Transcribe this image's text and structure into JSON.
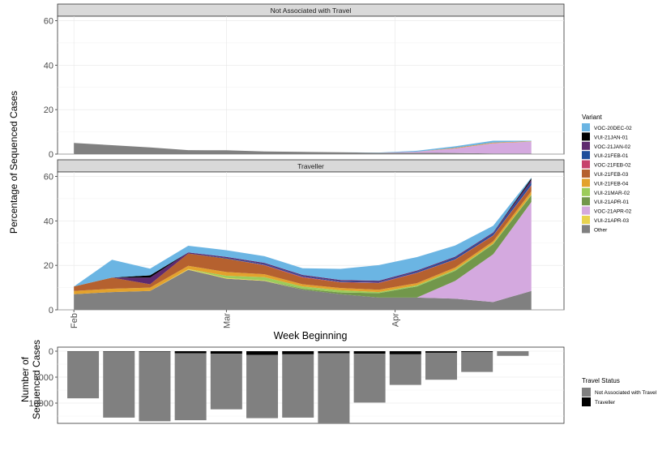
{
  "labels": {
    "ylabel_top": "Percentage of Sequenced Cases",
    "xlabel": "Week Beginning",
    "ylabel_bottom_line1": "Number of",
    "ylabel_bottom_line2": "Sequenced Cases",
    "legend1_title": "Variant",
    "legend2_title": "Travel Status"
  },
  "chart_data": [
    {
      "type": "area",
      "facet": "Not Associated with Travel",
      "ylim": [
        0,
        62
      ],
      "yticks": [
        0,
        20,
        40,
        60
      ],
      "x": [
        "2021-02-01",
        "2021-02-08",
        "2021-02-15",
        "2021-02-22",
        "2021-03-01",
        "2021-03-08",
        "2021-03-15",
        "2021-03-22",
        "2021-03-29",
        "2021-04-05",
        "2021-04-12",
        "2021-04-19",
        "2021-04-26"
      ],
      "xticks": [
        {
          "label": "Feb",
          "date": "2021-02-01"
        },
        {
          "label": "Mar",
          "date": "2021-03-01"
        },
        {
          "label": "Apr",
          "date": "2021-04-01"
        }
      ],
      "series": [
        {
          "name": "Other",
          "color": "#808080",
          "values": [
            5,
            4,
            3,
            1.8,
            1.7,
            1.2,
            1,
            0.8,
            0.6,
            0.6,
            0.5,
            0.3,
            0.3
          ]
        },
        {
          "name": "VUI-21APR-03",
          "color": "#E8D34F",
          "values": [
            0,
            0,
            0,
            0,
            0,
            0,
            0,
            0,
            0,
            0,
            0,
            0,
            0
          ]
        },
        {
          "name": "VOC-21APR-02",
          "color": "#D4A9DF",
          "values": [
            0,
            0,
            0,
            0,
            0,
            0,
            0,
            0,
            0,
            0.5,
            2,
            4.6,
            5.3
          ]
        },
        {
          "name": "VUI-21APR-01",
          "color": "#72974B",
          "values": [
            0,
            0,
            0,
            0,
            0,
            0,
            0,
            0,
            0,
            0,
            0,
            0,
            0
          ]
        },
        {
          "name": "VUI-21MAR-02",
          "color": "#9CCC5A",
          "values": [
            0,
            0,
            0,
            0,
            0,
            0,
            0,
            0,
            0,
            0,
            0,
            0,
            0
          ]
        },
        {
          "name": "VUI-21FEB-04",
          "color": "#E3A22D",
          "values": [
            0,
            0,
            0,
            0,
            0,
            0,
            0,
            0,
            0,
            0,
            0.2,
            0.2,
            0.2
          ]
        },
        {
          "name": "VUI-21FEB-03",
          "color": "#B5612F",
          "values": [
            0,
            0,
            0,
            0,
            0,
            0,
            0,
            0,
            0,
            0,
            0.1,
            0.1,
            0
          ]
        },
        {
          "name": "VOC-21FEB-02",
          "color": "#C7426C",
          "values": [
            0,
            0,
            0,
            0,
            0,
            0,
            0,
            0,
            0,
            0,
            0,
            0,
            0
          ]
        },
        {
          "name": "VUI-21FEB-01",
          "color": "#1F4E9B",
          "values": [
            0,
            0,
            0,
            0,
            0,
            0,
            0,
            0,
            0,
            0,
            0,
            0,
            0
          ]
        },
        {
          "name": "VOC-21JAN-02",
          "color": "#5E2A6F",
          "values": [
            0,
            0,
            0,
            0,
            0,
            0,
            0,
            0,
            0,
            0,
            0,
            0,
            0
          ]
        },
        {
          "name": "VUI-21JAN-01",
          "color": "#000000",
          "values": [
            0,
            0,
            0,
            0,
            0,
            0,
            0,
            0,
            0,
            0,
            0,
            0,
            0
          ]
        },
        {
          "name": "VOC-20DEC-02",
          "color": "#6BB5E3",
          "values": [
            0,
            0,
            0,
            0,
            0,
            0,
            0,
            0,
            0.1,
            0.4,
            0.7,
            0.8,
            0.2
          ]
        }
      ]
    },
    {
      "type": "area",
      "facet": "Traveller",
      "ylim": [
        0,
        62
      ],
      "yticks": [
        0,
        20,
        40,
        60
      ],
      "x": [
        "2021-02-01",
        "2021-02-08",
        "2021-02-15",
        "2021-02-22",
        "2021-03-01",
        "2021-03-08",
        "2021-03-15",
        "2021-03-22",
        "2021-03-29",
        "2021-04-05",
        "2021-04-12",
        "2021-04-19",
        "2021-04-26"
      ],
      "xticks": [
        {
          "label": "Feb",
          "date": "2021-02-01"
        },
        {
          "label": "Mar",
          "date": "2021-03-01"
        },
        {
          "label": "Apr",
          "date": "2021-04-01"
        }
      ],
      "series": [
        {
          "name": "Other",
          "color": "#808080",
          "values": [
            7,
            8,
            8.5,
            18,
            14,
            13,
            9,
            7,
            5.5,
            5.5,
            5,
            3.5,
            8.5
          ]
        },
        {
          "name": "VUI-21APR-03",
          "color": "#E8D34F",
          "values": [
            0,
            0,
            0,
            0.3,
            0.3,
            0.2,
            0,
            0,
            0,
            0,
            0,
            0,
            0
          ]
        },
        {
          "name": "VOC-21APR-02",
          "color": "#D4A9DF",
          "values": [
            0,
            0,
            0,
            0,
            0,
            0,
            0,
            0,
            0,
            0,
            8,
            21.5,
            40
          ]
        },
        {
          "name": "VUI-21APR-01",
          "color": "#72974B",
          "values": [
            0,
            0,
            0,
            0,
            0,
            0,
            0.5,
            0.8,
            2,
            5,
            4.5,
            4.5,
            3
          ]
        },
        {
          "name": "VUI-21MAR-02",
          "color": "#9CCC5A",
          "values": [
            0,
            0,
            0,
            0,
            1,
            1.5,
            1,
            1,
            0.5,
            0.5,
            0.5,
            0.3,
            0.3
          ]
        },
        {
          "name": "VUI-21FEB-04",
          "color": "#E3A22D",
          "values": [
            1.5,
            1.5,
            1.5,
            1.5,
            1.7,
            1.3,
            1,
            1,
            1,
            1,
            1,
            1,
            1.5
          ]
        },
        {
          "name": "VUI-21FEB-03",
          "color": "#B5612F",
          "values": [
            2,
            5,
            1.5,
            5.5,
            6,
            4,
            3,
            2.5,
            3,
            4.5,
            3.5,
            2.5,
            2.5
          ]
        },
        {
          "name": "VOC-21FEB-02",
          "color": "#C7426C",
          "values": [
            0,
            0,
            0,
            0,
            0,
            0.2,
            0.3,
            0.2,
            0.2,
            0.2,
            0.2,
            0.2,
            0.3
          ]
        },
        {
          "name": "VUI-21FEB-01",
          "color": "#1F4E9B",
          "values": [
            0,
            0,
            0,
            0,
            0.3,
            0.4,
            0.4,
            0.4,
            0.4,
            0.5,
            0.7,
            0.8,
            1.3
          ]
        },
        {
          "name": "VOC-21JAN-02",
          "color": "#5E2A6F",
          "values": [
            0,
            0,
            3,
            0.5,
            0.5,
            0.5,
            0.5,
            0.5,
            0.5,
            0.5,
            0.5,
            0.5,
            1
          ]
        },
        {
          "name": "VUI-21JAN-01",
          "color": "#000000",
          "values": [
            0,
            0,
            1,
            0,
            0,
            0,
            0,
            0,
            0,
            0,
            0,
            0,
            0.8
          ]
        },
        {
          "name": "VOC-20DEC-02",
          "color": "#6BB5E3",
          "values": [
            0,
            8,
            3,
            3,
            3,
            3,
            3,
            5,
            7,
            6,
            5,
            3,
            0.3
          ]
        }
      ]
    },
    {
      "type": "bar",
      "stacked": true,
      "reversed_y": true,
      "yticks": [
        0,
        5000,
        10000
      ],
      "categories": [
        "2021-02-01",
        "2021-02-08",
        "2021-02-15",
        "2021-02-22",
        "2021-03-01",
        "2021-03-08",
        "2021-03-15",
        "2021-03-22",
        "2021-03-29",
        "2021-04-05",
        "2021-04-12",
        "2021-04-19",
        "2021-04-26"
      ],
      "series": [
        {
          "name": "Traveller",
          "color": "#000000",
          "values": [
            30,
            50,
            100,
            400,
            500,
            700,
            600,
            400,
            500,
            600,
            300,
            150,
            0
          ]
        },
        {
          "name": "Not Associated with Travel",
          "color": "#808080",
          "values": [
            9050,
            12750,
            13400,
            12900,
            10700,
            12200,
            12200,
            13400,
            9400,
            5900,
            5200,
            3850,
            900
          ]
        }
      ]
    }
  ]
}
